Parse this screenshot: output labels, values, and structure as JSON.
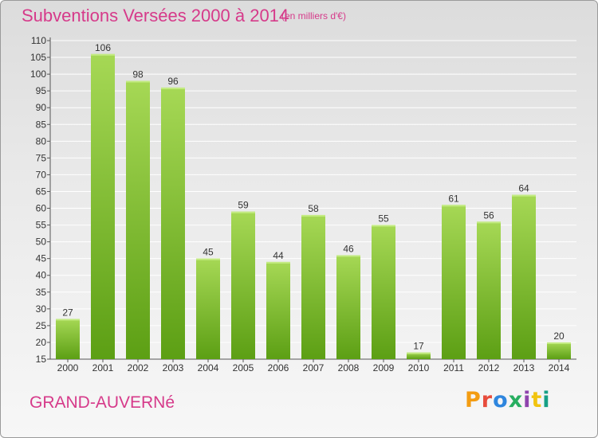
{
  "header": {
    "title": "Subventions Versées 2000 à 2014",
    "unit_note": "(en milliers d'€)"
  },
  "footer": {
    "commune": "GRAND-AUVERNé",
    "logo_text": "Proxiti",
    "logo_colors": [
      "#f39c12",
      "#e74c3c",
      "#2e86de",
      "#27ae60",
      "#8e44ad",
      "#f1c40f",
      "#16a085"
    ]
  },
  "colors": {
    "title": "#d63a8a",
    "bar_light": "#a6d855",
    "bar_dark": "#5c9f14"
  },
  "chart_data": {
    "type": "bar",
    "categories": [
      "2000",
      "2001",
      "2002",
      "2003",
      "2004",
      "2005",
      "2006",
      "2007",
      "2008",
      "2009",
      "2010",
      "2011",
      "2012",
      "2013",
      "2014"
    ],
    "values": [
      27,
      106,
      98,
      96,
      45,
      59,
      44,
      58,
      46,
      55,
      17,
      61,
      56,
      64,
      20
    ],
    "ylim": [
      15,
      110
    ],
    "yticks": [
      15,
      20,
      25,
      30,
      35,
      40,
      45,
      50,
      55,
      60,
      65,
      70,
      75,
      80,
      85,
      90,
      95,
      100,
      105,
      110
    ],
    "grid": true,
    "data_labels": true
  }
}
